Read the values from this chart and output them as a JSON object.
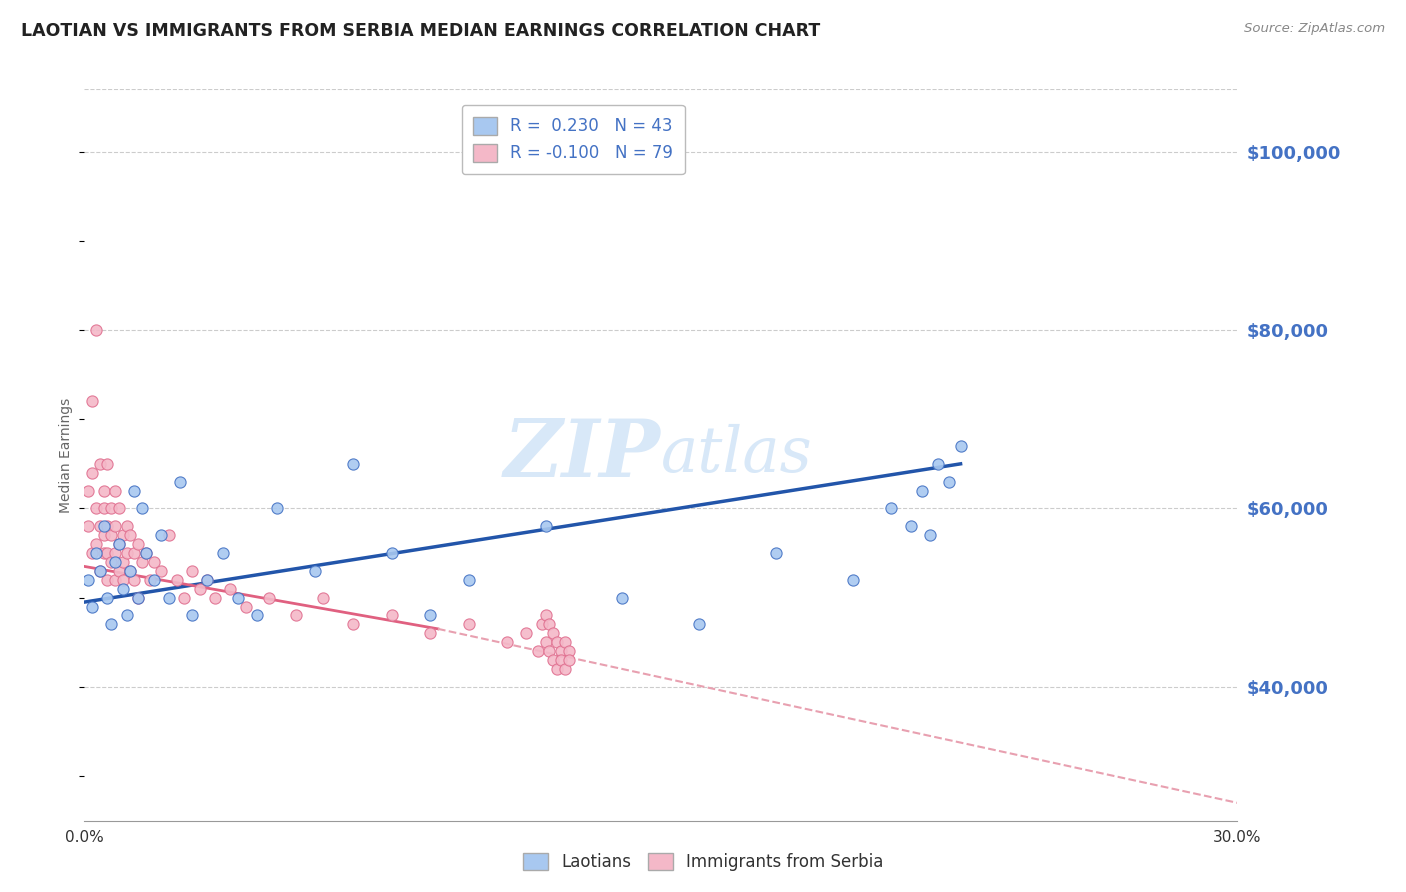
{
  "title": "LAOTIAN VS IMMIGRANTS FROM SERBIA MEDIAN EARNINGS CORRELATION CHART",
  "source": "Source: ZipAtlas.com",
  "ylabel": "Median Earnings",
  "y_ticks": [
    40000,
    60000,
    80000,
    100000
  ],
  "y_tick_labels": [
    "$40,000",
    "$60,000",
    "$80,000",
    "$100,000"
  ],
  "x_min": 0.0,
  "x_max": 0.3,
  "y_min": 25000,
  "y_max": 107000,
  "legend_r1": "R =  0.230",
  "legend_n1": "N = 43",
  "legend_r2": "R = -0.100",
  "legend_n2": "N = 79",
  "color_blue_fill": "#a8c8f0",
  "color_blue_edge": "#4472c4",
  "color_pink_fill": "#f4b8c8",
  "color_pink_edge": "#e07090",
  "color_line_blue": "#2255aa",
  "color_line_pink_solid": "#e06080",
  "color_line_pink_dash": "#e8a0b0",
  "watermark_color": "#d8e8f8",
  "blue_scatter_x": [
    0.001,
    0.002,
    0.003,
    0.004,
    0.005,
    0.006,
    0.007,
    0.008,
    0.009,
    0.01,
    0.011,
    0.012,
    0.013,
    0.014,
    0.015,
    0.016,
    0.018,
    0.02,
    0.022,
    0.025,
    0.028,
    0.032,
    0.036,
    0.04,
    0.045,
    0.05,
    0.06,
    0.07,
    0.08,
    0.09,
    0.1,
    0.12,
    0.14,
    0.16,
    0.18,
    0.2,
    0.21,
    0.215,
    0.218,
    0.22,
    0.222,
    0.225,
    0.228
  ],
  "blue_scatter_y": [
    52000,
    49000,
    55000,
    53000,
    58000,
    50000,
    47000,
    54000,
    56000,
    51000,
    48000,
    53000,
    62000,
    50000,
    60000,
    55000,
    52000,
    57000,
    50000,
    63000,
    48000,
    52000,
    55000,
    50000,
    48000,
    60000,
    53000,
    65000,
    55000,
    48000,
    52000,
    58000,
    50000,
    47000,
    55000,
    52000,
    60000,
    58000,
    62000,
    57000,
    65000,
    63000,
    67000
  ],
  "pink_scatter_x": [
    0.001,
    0.001,
    0.002,
    0.002,
    0.002,
    0.003,
    0.003,
    0.003,
    0.004,
    0.004,
    0.004,
    0.005,
    0.005,
    0.005,
    0.005,
    0.006,
    0.006,
    0.006,
    0.006,
    0.007,
    0.007,
    0.007,
    0.008,
    0.008,
    0.008,
    0.008,
    0.009,
    0.009,
    0.009,
    0.01,
    0.01,
    0.01,
    0.011,
    0.011,
    0.012,
    0.012,
    0.013,
    0.013,
    0.014,
    0.014,
    0.015,
    0.016,
    0.017,
    0.018,
    0.02,
    0.022,
    0.024,
    0.026,
    0.028,
    0.03,
    0.032,
    0.034,
    0.038,
    0.042,
    0.048,
    0.055,
    0.062,
    0.07,
    0.08,
    0.09,
    0.1,
    0.11,
    0.115,
    0.118,
    0.119,
    0.12,
    0.12,
    0.121,
    0.121,
    0.122,
    0.122,
    0.123,
    0.123,
    0.124,
    0.124,
    0.125,
    0.125,
    0.126,
    0.126
  ],
  "pink_scatter_y": [
    58000,
    62000,
    64000,
    55000,
    72000,
    60000,
    56000,
    80000,
    65000,
    58000,
    53000,
    60000,
    55000,
    57000,
    62000,
    55000,
    58000,
    52000,
    65000,
    57000,
    60000,
    54000,
    58000,
    55000,
    52000,
    62000,
    56000,
    53000,
    60000,
    57000,
    54000,
    52000,
    58000,
    55000,
    57000,
    53000,
    55000,
    52000,
    56000,
    50000,
    54000,
    55000,
    52000,
    54000,
    53000,
    57000,
    52000,
    50000,
    53000,
    51000,
    52000,
    50000,
    51000,
    49000,
    50000,
    48000,
    50000,
    47000,
    48000,
    46000,
    47000,
    45000,
    46000,
    44000,
    47000,
    45000,
    48000,
    44000,
    47000,
    43000,
    46000,
    42000,
    45000,
    44000,
    43000,
    42000,
    45000,
    44000,
    43000
  ],
  "blue_line_x": [
    0.0,
    0.228
  ],
  "blue_line_y": [
    49500,
    65000
  ],
  "pink_solid_line_x": [
    0.0,
    0.092
  ],
  "pink_solid_line_y": [
    53500,
    46500
  ],
  "pink_dash_line_x": [
    0.092,
    0.3
  ],
  "pink_dash_line_y": [
    46500,
    27000
  ]
}
